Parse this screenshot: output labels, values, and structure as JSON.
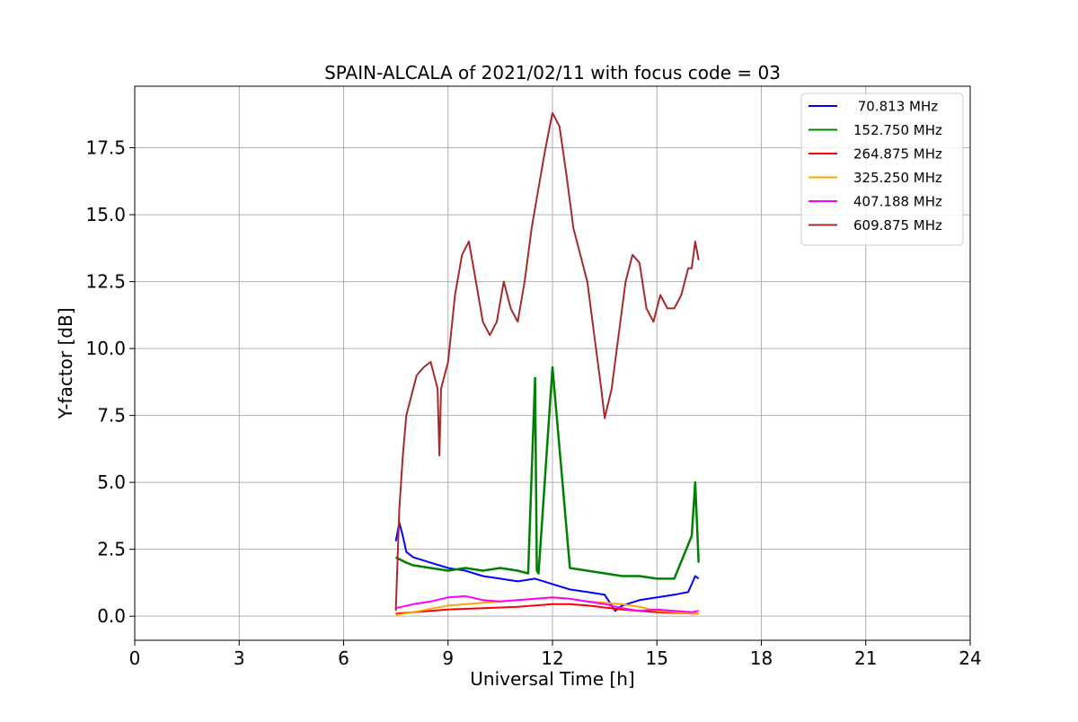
{
  "chart_data": {
    "type": "line",
    "title": "SPAIN-ALCALA of 2021/02/11 with focus code = 03",
    "xlabel": "Universal Time [h]",
    "ylabel": "Y-factor [dB]",
    "xlim": [
      0,
      24
    ],
    "ylim": [
      -0.9,
      19.8
    ],
    "xticks": [
      0,
      3,
      6,
      9,
      12,
      15,
      18,
      21,
      24
    ],
    "xtick_labels": [
      "0",
      "3",
      "6",
      "9",
      "12",
      "15",
      "18",
      "21",
      "24"
    ],
    "yticks": [
      0.0,
      2.5,
      5.0,
      7.5,
      10.0,
      12.5,
      15.0,
      17.5
    ],
    "ytick_labels": [
      "0.0",
      "2.5",
      "5.0",
      "7.5",
      "10.0",
      "12.5",
      "15.0",
      "17.5"
    ],
    "grid": true,
    "legend_position": "top-right",
    "series": [
      {
        "name": " 70.813 MHz",
        "color": "#0000ff",
        "x": [
          7.5,
          7.6,
          7.7,
          7.8,
          8.0,
          8.5,
          9.0,
          9.5,
          10.0,
          10.5,
          11.0,
          11.5,
          12.0,
          12.5,
          13.0,
          13.5,
          13.8,
          14.0,
          14.5,
          15.0,
          15.5,
          15.9,
          16.0,
          16.1,
          16.2
        ],
        "values": [
          2.8,
          3.5,
          3.0,
          2.4,
          2.2,
          2.0,
          1.8,
          1.7,
          1.5,
          1.4,
          1.3,
          1.4,
          1.2,
          1.0,
          0.9,
          0.8,
          0.2,
          0.4,
          0.6,
          0.7,
          0.8,
          0.9,
          1.2,
          1.5,
          1.4
        ]
      },
      {
        "name": "152.750 MHz",
        "color": "#008000",
        "x": [
          7.5,
          7.8,
          8.0,
          8.5,
          9.0,
          9.5,
          10.0,
          10.5,
          11.0,
          11.3,
          11.5,
          11.55,
          11.6,
          12.0,
          12.5,
          13.0,
          13.5,
          14.0,
          14.5,
          15.0,
          15.5,
          16.0,
          16.1,
          16.2
        ],
        "values": [
          2.2,
          2.0,
          1.9,
          1.8,
          1.7,
          1.8,
          1.7,
          1.8,
          1.7,
          1.6,
          8.9,
          1.7,
          1.6,
          9.3,
          1.8,
          1.7,
          1.6,
          1.5,
          1.5,
          1.4,
          1.4,
          3.0,
          5.0,
          2.0
        ]
      },
      {
        "name": "264.875 MHz",
        "color": "#ff0000",
        "x": [
          7.5,
          8.0,
          9.0,
          10.0,
          11.0,
          12.0,
          12.5,
          13.0,
          14.0,
          15.0,
          16.0,
          16.2
        ],
        "values": [
          0.1,
          0.15,
          0.25,
          0.3,
          0.35,
          0.45,
          0.45,
          0.4,
          0.25,
          0.15,
          0.1,
          0.1
        ]
      },
      {
        "name": "325.250 MHz",
        "color": "#ffa500",
        "x": [
          7.5,
          8.0,
          9.0,
          10.0,
          11.0,
          12.0,
          12.5,
          13.0,
          14.0,
          14.5,
          15.0,
          16.0,
          16.2
        ],
        "values": [
          0.05,
          0.15,
          0.4,
          0.5,
          0.6,
          0.7,
          0.65,
          0.55,
          0.45,
          0.35,
          0.2,
          0.1,
          0.1
        ]
      },
      {
        "name": "407.188 MHz",
        "color": "#ff00ff",
        "x": [
          7.5,
          8.0,
          8.5,
          9.0,
          9.5,
          10.0,
          10.5,
          11.0,
          11.5,
          12.0,
          12.5,
          13.0,
          13.5,
          14.0,
          14.5,
          15.0,
          15.5,
          16.0,
          16.2
        ],
        "values": [
          0.3,
          0.45,
          0.55,
          0.7,
          0.75,
          0.6,
          0.55,
          0.6,
          0.65,
          0.7,
          0.65,
          0.55,
          0.45,
          0.3,
          0.2,
          0.25,
          0.2,
          0.15,
          0.2
        ]
      },
      {
        "name": "609.875 MHz",
        "color": "#a52a2a",
        "x": [
          7.5,
          7.6,
          7.7,
          7.8,
          8.0,
          8.1,
          8.3,
          8.5,
          8.7,
          8.75,
          8.8,
          9.0,
          9.2,
          9.4,
          9.6,
          9.8,
          10.0,
          10.2,
          10.4,
          10.6,
          10.8,
          11.0,
          11.2,
          11.4,
          11.6,
          11.8,
          12.0,
          12.2,
          12.4,
          12.6,
          12.8,
          13.0,
          13.2,
          13.4,
          13.5,
          13.7,
          13.9,
          14.1,
          14.3,
          14.5,
          14.7,
          14.9,
          15.1,
          15.3,
          15.5,
          15.7,
          15.9,
          16.0,
          16.1,
          16.2
        ],
        "values": [
          0.2,
          4.0,
          6.0,
          7.5,
          8.5,
          9.0,
          9.3,
          9.5,
          8.5,
          6.0,
          8.5,
          9.5,
          12.0,
          13.5,
          14.0,
          12.5,
          11.0,
          10.5,
          11.0,
          12.5,
          11.5,
          11.0,
          12.5,
          14.5,
          16.0,
          17.5,
          18.8,
          18.3,
          16.5,
          14.5,
          13.5,
          12.5,
          10.5,
          8.5,
          7.4,
          8.5,
          10.5,
          12.5,
          13.5,
          13.2,
          11.5,
          11.0,
          12.0,
          11.5,
          11.5,
          12.0,
          13.0,
          13.0,
          14.0,
          13.3
        ]
      }
    ]
  }
}
